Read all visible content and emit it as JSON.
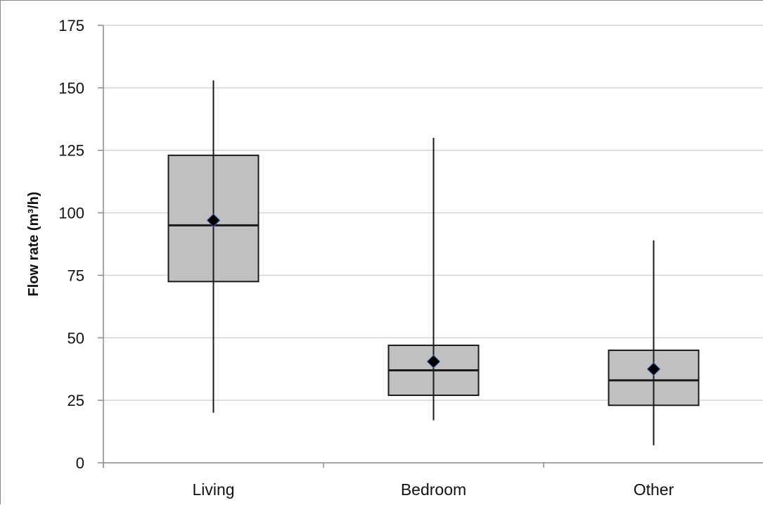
{
  "chart_data": {
    "type": "boxplot",
    "title": "",
    "xlabel": "",
    "ylabel": "Flow rate (m³/h)",
    "ylim": [
      0,
      175
    ],
    "yticks": [
      0,
      25,
      50,
      75,
      100,
      125,
      150,
      175
    ],
    "grid": true,
    "categories": [
      "Living",
      "Bedroom",
      "Other"
    ],
    "series": [
      {
        "boxes": [
          {
            "category": "Living",
            "min": 20,
            "q1": 72.5,
            "median": 95,
            "q3": 123,
            "max": 153,
            "mean": 97
          },
          {
            "category": "Bedroom",
            "min": 17,
            "q1": 27,
            "median": 37,
            "q3": 47,
            "max": 130,
            "mean": 40.5
          },
          {
            "category": "Other",
            "min": 7,
            "q1": 23,
            "median": 33,
            "q3": 45,
            "max": 89,
            "mean": 37.5
          }
        ]
      }
    ],
    "colors": {
      "box_fill": "#c0c0c0",
      "box_stroke": "#1a1a1a",
      "grid": "#d4d4d4",
      "axis": "#8c8c8c",
      "mean_marker": "#000000",
      "mean_marker_edge": "#3a5fa8"
    }
  }
}
